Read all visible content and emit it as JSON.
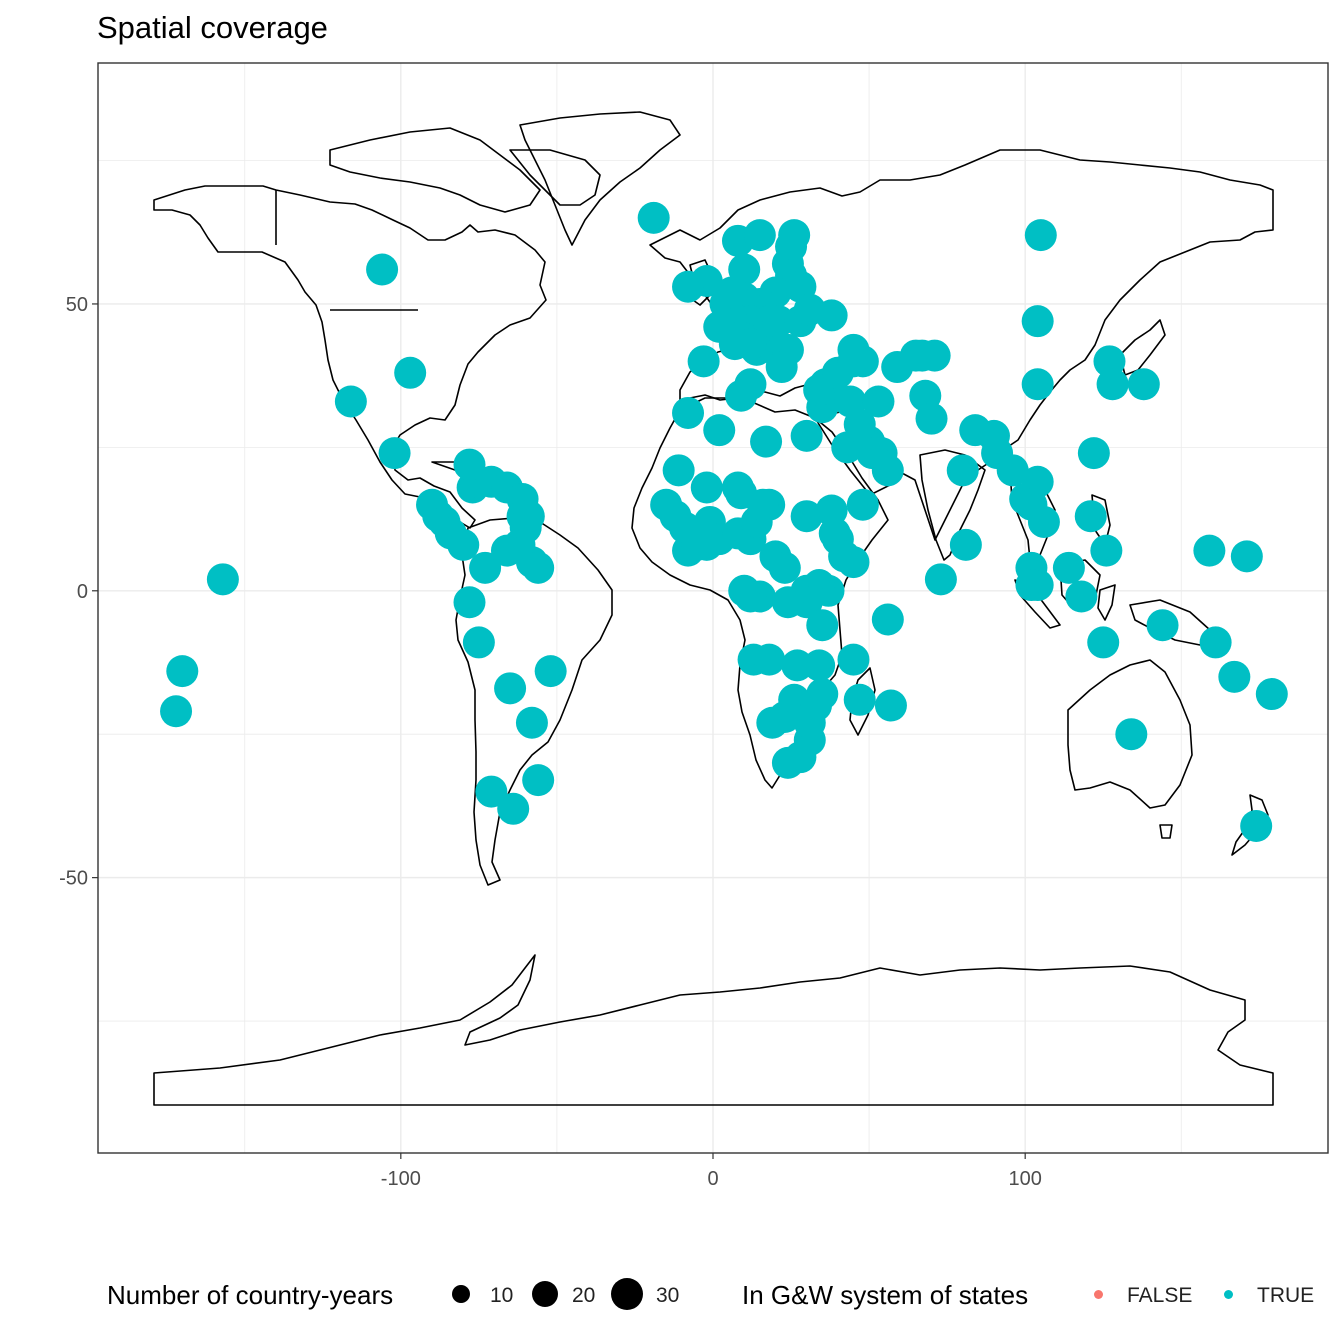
{
  "title": "Spatial coverage",
  "colors": {
    "true": "#00BFC4",
    "false": "#F8766D",
    "land_outline": "#000000",
    "grid": "#ebebeb",
    "panel_border": "#333333"
  },
  "chart_data": {
    "type": "scatter",
    "title": "Spatial coverage",
    "xlim": [
      -197,
      197
    ],
    "ylim": [
      -98,
      92
    ],
    "x_ticks": [
      -100,
      0,
      100
    ],
    "y_ticks": [
      -50,
      0,
      50
    ],
    "x_tick_labels": [
      "-100",
      "0",
      "100"
    ],
    "y_tick_labels": [
      "-50",
      "0",
      "50"
    ],
    "grid": true,
    "legend_position": "bottom",
    "size_legend": {
      "title": "Number of country-years",
      "breaks": [
        10,
        20,
        30
      ],
      "labels": [
        "10",
        "20",
        "30"
      ]
    },
    "color_legend": {
      "title": "In G&W system of states",
      "labels": [
        "FALSE",
        "TRUE"
      ]
    },
    "points": [
      [
        -19,
        65
      ],
      [
        -106,
        56
      ],
      [
        105,
        62
      ],
      [
        -97,
        38
      ],
      [
        -116,
        33
      ],
      [
        -102,
        24
      ],
      [
        -157,
        2
      ],
      [
        -170,
        -14
      ],
      [
        -172,
        -21
      ],
      [
        -90,
        15
      ],
      [
        -88,
        13
      ],
      [
        -86,
        12
      ],
      [
        -84,
        10
      ],
      [
        -80,
        8
      ],
      [
        -77,
        18
      ],
      [
        -78,
        22
      ],
      [
        -75,
        19
      ],
      [
        -71,
        19
      ],
      [
        -66,
        18
      ],
      [
        -61,
        16
      ],
      [
        -61,
        13
      ],
      [
        -60,
        11
      ],
      [
        -59,
        13
      ],
      [
        -62,
        8
      ],
      [
        -73,
        4
      ],
      [
        -66,
        7
      ],
      [
        -58,
        5
      ],
      [
        -56,
        4
      ],
      [
        -78,
        -2
      ],
      [
        -75,
        -9
      ],
      [
        -65,
        -17
      ],
      [
        -58,
        -23
      ],
      [
        -52,
        -14
      ],
      [
        -56,
        -33
      ],
      [
        -64,
        -38
      ],
      [
        -71,
        -35
      ],
      [
        -2,
        54
      ],
      [
        -8,
        53
      ],
      [
        -3,
        40
      ],
      [
        8,
        61
      ],
      [
        10,
        56
      ],
      [
        15,
        62
      ],
      [
        25,
        60
      ],
      [
        26,
        62
      ],
      [
        24,
        57
      ],
      [
        25,
        55
      ],
      [
        28,
        53
      ],
      [
        20,
        52
      ],
      [
        15,
        50
      ],
      [
        10,
        51
      ],
      [
        8,
        47
      ],
      [
        4,
        50
      ],
      [
        2,
        46
      ],
      [
        6,
        52
      ],
      [
        12,
        47
      ],
      [
        14,
        46
      ],
      [
        16,
        44
      ],
      [
        18,
        44
      ],
      [
        20,
        42
      ],
      [
        22,
        42
      ],
      [
        24,
        42
      ],
      [
        22,
        39
      ],
      [
        18,
        47
      ],
      [
        21,
        47
      ],
      [
        28,
        47
      ],
      [
        31,
        49
      ],
      [
        38,
        48
      ],
      [
        14,
        42
      ],
      [
        10,
        44
      ],
      [
        12,
        43
      ],
      [
        7,
        43
      ],
      [
        12,
        36
      ],
      [
        9,
        34
      ],
      [
        2,
        28
      ],
      [
        -8,
        31
      ],
      [
        17,
        26
      ],
      [
        30,
        27
      ],
      [
        35,
        32
      ],
      [
        36,
        36
      ],
      [
        38,
        34
      ],
      [
        34,
        35
      ],
      [
        40,
        38
      ],
      [
        44,
        33
      ],
      [
        45,
        40
      ],
      [
        48,
        40
      ],
      [
        45,
        42
      ],
      [
        43,
        25
      ],
      [
        47,
        29
      ],
      [
        50,
        26
      ],
      [
        51,
        25
      ],
      [
        54,
        24
      ],
      [
        56,
        21
      ],
      [
        51,
        24
      ],
      [
        48,
        15
      ],
      [
        53,
        33
      ],
      [
        59,
        39
      ],
      [
        67,
        41
      ],
      [
        65,
        41
      ],
      [
        71,
        41
      ],
      [
        68,
        34
      ],
      [
        70,
        30
      ],
      [
        80,
        21
      ],
      [
        84,
        28
      ],
      [
        90,
        27
      ],
      [
        91,
        24
      ],
      [
        96,
        21
      ],
      [
        100,
        16
      ],
      [
        104,
        19
      ],
      [
        102,
        15
      ],
      [
        106,
        12
      ],
      [
        104,
        47
      ],
      [
        104,
        36
      ],
      [
        127,
        40
      ],
      [
        128,
        36
      ],
      [
        138,
        36
      ],
      [
        122,
        24
      ],
      [
        121,
        13
      ],
      [
        114,
        4
      ],
      [
        118,
        -1
      ],
      [
        104,
        1
      ],
      [
        102,
        4
      ],
      [
        102,
        1
      ],
      [
        126,
        7
      ],
      [
        159,
        7
      ],
      [
        171,
        6
      ],
      [
        144,
        -6
      ],
      [
        161,
        -9
      ],
      [
        167,
        -15
      ],
      [
        179,
        -18
      ],
      [
        134,
        -25
      ],
      [
        174,
        -41
      ],
      [
        81,
        8
      ],
      [
        73,
        2
      ],
      [
        125,
        -9
      ],
      [
        -15,
        15
      ],
      [
        -12,
        13
      ],
      [
        -9,
        11
      ],
      [
        -8,
        7
      ],
      [
        -5,
        8
      ],
      [
        -2,
        8
      ],
      [
        -1,
        12
      ],
      [
        2,
        9
      ],
      [
        8,
        10
      ],
      [
        12,
        9
      ],
      [
        14,
        12
      ],
      [
        18,
        15
      ],
      [
        9,
        17
      ],
      [
        -2,
        18
      ],
      [
        -11,
        21
      ],
      [
        8,
        18
      ],
      [
        20,
        6
      ],
      [
        23,
        4
      ],
      [
        16,
        15
      ],
      [
        30,
        13
      ],
      [
        38,
        14
      ],
      [
        40,
        9
      ],
      [
        39,
        10
      ],
      [
        42,
        6
      ],
      [
        45,
        5
      ],
      [
        37,
        0
      ],
      [
        34,
        1
      ],
      [
        30,
        0
      ],
      [
        30,
        -2
      ],
      [
        35,
        -6
      ],
      [
        24,
        -2
      ],
      [
        15,
        -1
      ],
      [
        12,
        -1
      ],
      [
        10,
        0
      ],
      [
        13,
        -12
      ],
      [
        18,
        -12
      ],
      [
        27,
        -13
      ],
      [
        34,
        -13
      ],
      [
        35,
        -18
      ],
      [
        45,
        -12
      ],
      [
        47,
        -19
      ],
      [
        57,
        -20
      ],
      [
        56,
        -5
      ],
      [
        23,
        -22
      ],
      [
        19,
        -23
      ],
      [
        26,
        -19
      ],
      [
        29,
        -21
      ],
      [
        31,
        -26
      ],
      [
        28,
        -29
      ],
      [
        24,
        -30
      ],
      [
        31,
        -23
      ],
      [
        33,
        -20
      ]
    ]
  }
}
